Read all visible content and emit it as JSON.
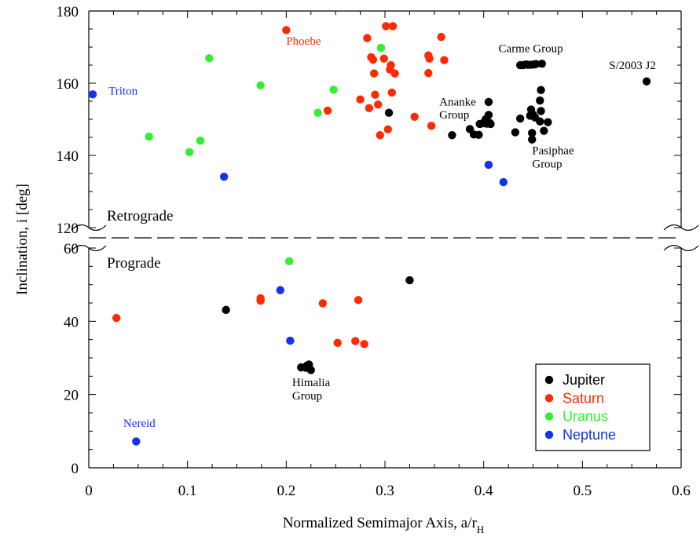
{
  "chart_data": {
    "type": "scatter",
    "title": "",
    "xlabel": "Normalized Semimajor Axis, a/r",
    "xlabel_sub": "H",
    "ylabel": "Inclination, i [deg]",
    "xlim": [
      0,
      0.6
    ],
    "x_ticks": [
      "0",
      "0.1",
      "0.2",
      "0.3",
      "0.4",
      "0.5",
      "0.6"
    ],
    "x_tick_values": [
      0,
      0.1,
      0.2,
      0.3,
      0.4,
      0.5,
      0.6
    ],
    "broken_y_axis": true,
    "upper_panel": {
      "label": "Retrograde",
      "ylim": [
        120,
        180
      ],
      "ticks": [
        "120",
        "140",
        "160",
        "180"
      ],
      "tick_values": [
        120,
        140,
        160,
        180
      ]
    },
    "lower_panel": {
      "label": "Prograde",
      "ylim": [
        0,
        60
      ],
      "ticks": [
        "0",
        "20",
        "40",
        "60"
      ],
      "tick_values": [
        0,
        20,
        40,
        60
      ]
    },
    "legend_position": "bottom-right",
    "series": [
      {
        "name": "Jupiter",
        "color": "#000000",
        "points": [
          [
            0.139,
            43.1
          ],
          [
            0.325,
            51.2
          ],
          [
            0.215,
            27.4
          ],
          [
            0.22,
            27.3
          ],
          [
            0.223,
            28.2
          ],
          [
            0.225,
            26.7
          ],
          [
            0.221,
            27.9
          ],
          [
            0.304,
            151.8
          ],
          [
            0.368,
            145.6
          ],
          [
            0.386,
            147.3
          ],
          [
            0.39,
            145.8
          ],
          [
            0.395,
            145.7
          ],
          [
            0.396,
            148.7
          ],
          [
            0.399,
            148.9
          ],
          [
            0.401,
            149.3
          ],
          [
            0.403,
            148.8
          ],
          [
            0.405,
            151.2
          ],
          [
            0.406,
            149.0
          ],
          [
            0.407,
            148.7
          ],
          [
            0.405,
            154.8
          ],
          [
            0.402,
            150.0
          ],
          [
            0.437,
            165.0
          ],
          [
            0.44,
            165.0
          ],
          [
            0.443,
            165.2
          ],
          [
            0.445,
            165.1
          ],
          [
            0.448,
            165.1
          ],
          [
            0.451,
            165.2
          ],
          [
            0.453,
            165.3
          ],
          [
            0.459,
            165.4
          ],
          [
            0.432,
            146.4
          ],
          [
            0.437,
            150.2
          ],
          [
            0.447,
            151.0
          ],
          [
            0.448,
            152.7
          ],
          [
            0.45,
            151.3
          ],
          [
            0.449,
            144.4
          ],
          [
            0.449,
            146.2
          ],
          [
            0.457,
            149.4
          ],
          [
            0.457,
            155.2
          ],
          [
            0.458,
            158.1
          ],
          [
            0.458,
            152.3
          ],
          [
            0.461,
            146.8
          ],
          [
            0.465,
            149.2
          ],
          [
            0.452,
            150.5
          ],
          [
            0.565,
            160.5
          ]
        ]
      },
      {
        "name": "Saturn",
        "color": "#ff2a00",
        "points": [
          [
            0.028,
            40.9
          ],
          [
            0.174,
            45.6
          ],
          [
            0.174,
            46.3
          ],
          [
            0.237,
            44.9
          ],
          [
            0.252,
            34.1
          ],
          [
            0.27,
            34.6
          ],
          [
            0.273,
            45.8
          ],
          [
            0.279,
            33.8
          ],
          [
            0.2,
            174.7
          ],
          [
            0.242,
            152.4
          ],
          [
            0.275,
            155.5
          ],
          [
            0.282,
            172.5
          ],
          [
            0.284,
            153.1
          ],
          [
            0.286,
            167.2
          ],
          [
            0.288,
            166.5
          ],
          [
            0.289,
            162.7
          ],
          [
            0.29,
            156.8
          ],
          [
            0.293,
            154.1
          ],
          [
            0.295,
            145.6
          ],
          [
            0.299,
            166.8
          ],
          [
            0.301,
            175.8
          ],
          [
            0.303,
            147.2
          ],
          [
            0.305,
            163.8
          ],
          [
            0.306,
            165.0
          ],
          [
            0.307,
            157.4
          ],
          [
            0.308,
            175.8
          ],
          [
            0.31,
            162.7
          ],
          [
            0.33,
            150.7
          ],
          [
            0.344,
            162.8
          ],
          [
            0.344,
            167.7
          ],
          [
            0.345,
            166.8
          ],
          [
            0.347,
            148.2
          ],
          [
            0.357,
            172.8
          ],
          [
            0.36,
            166.4
          ]
        ]
      },
      {
        "name": "Uranus",
        "color": "#33ee33",
        "points": [
          [
            0.061,
            145.2
          ],
          [
            0.102,
            140.9
          ],
          [
            0.113,
            144.1
          ],
          [
            0.122,
            166.9
          ],
          [
            0.174,
            159.4
          ],
          [
            0.203,
            56.4
          ],
          [
            0.232,
            151.8
          ],
          [
            0.248,
            158.2
          ],
          [
            0.296,
            169.8
          ]
        ]
      },
      {
        "name": "Neptune",
        "color": "#1133ee",
        "points": [
          [
            0.004,
            156.9
          ],
          [
            0.048,
            7.2
          ],
          [
            0.137,
            134.1
          ],
          [
            0.194,
            48.5
          ],
          [
            0.204,
            34.7
          ],
          [
            0.405,
            137.4
          ],
          [
            0.42,
            132.6
          ]
        ]
      }
    ],
    "annotations": [
      {
        "text": "Phoebe",
        "color": "#ff2a00",
        "x": 0.2,
        "y": 170.7
      },
      {
        "text": "Triton",
        "color": "#1133ee",
        "x": 0.02,
        "y": 156.8
      },
      {
        "text": "Carme Group",
        "color": "#000000",
        "x": 0.415,
        "y": 168.6
      },
      {
        "text": "S/2003 J2",
        "color": "#000000",
        "x": 0.527,
        "y": 163.9
      },
      {
        "text": "Ananke",
        "color": "#000000",
        "x": 0.355,
        "y": 153.8
      },
      {
        "text": "Group",
        "color": "#000000",
        "x": 0.355,
        "y": 150.2
      },
      {
        "text": "Pasiphae",
        "color": "#000000",
        "x": 0.449,
        "y": 140.3
      },
      {
        "text": "Group",
        "color": "#000000",
        "x": 0.449,
        "y": 136.6
      },
      {
        "text": "Himalia",
        "color": "#000000",
        "x": 0.206,
        "y": 22.3
      },
      {
        "text": "Group",
        "color": "#000000",
        "x": 0.206,
        "y": 18.6
      },
      {
        "text": "Nereid",
        "color": "#1133ee",
        "x": 0.035,
        "y": 11.1
      }
    ]
  }
}
